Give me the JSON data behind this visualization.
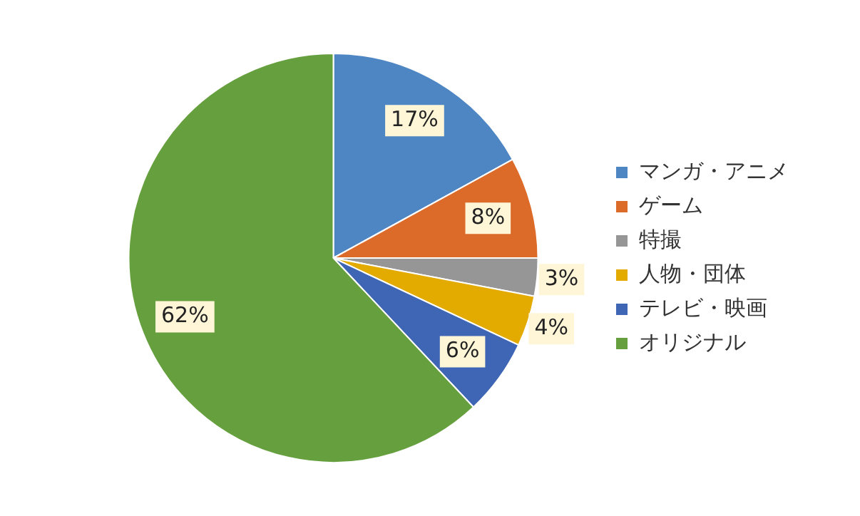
{
  "chart_data": {
    "type": "pie",
    "categories": [
      "マンガ・アニメ",
      "ゲーム",
      "特撮",
      "人物・団体",
      "テレビ・映画",
      "オリジナル"
    ],
    "values": [
      17,
      8,
      3,
      4,
      6,
      62
    ],
    "colors": [
      "#4e86c4",
      "#dc6b2a",
      "#969696",
      "#e3aa00",
      "#3e66b5",
      "#66a03e"
    ],
    "value_labels": [
      "17%",
      "8%",
      "3%",
      "4%",
      "6%",
      "62%"
    ],
    "legend": "right"
  }
}
